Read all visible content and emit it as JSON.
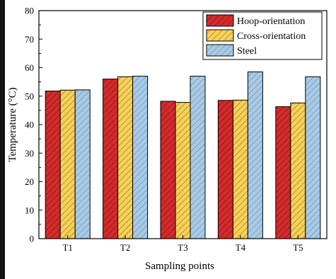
{
  "chart_data": {
    "type": "bar",
    "title": "",
    "xlabel": "Sampling points",
    "ylabel": "Temperature (°C)",
    "categories": [
      "T1",
      "T2",
      "T3",
      "T4",
      "T5"
    ],
    "ylim": [
      0,
      80
    ],
    "yticks": [
      "0",
      "10",
      "20",
      "30",
      "40",
      "50",
      "60",
      "70",
      "80"
    ],
    "grid": false,
    "legend_position": "top-right",
    "series": [
      {
        "name": "Hoop-orientation",
        "values": [
          51.8,
          56.0,
          48.2,
          48.5,
          46.3
        ],
        "color": "#d42b2b",
        "hatch": "#6b0d0d"
      },
      {
        "name": "Cross-orientation",
        "values": [
          52.1,
          56.8,
          47.8,
          48.6,
          47.6
        ],
        "color": "#f7d15a",
        "hatch": "#8a6a10"
      },
      {
        "name": "Steel",
        "values": [
          52.2,
          57.0,
          57.0,
          58.5,
          56.8
        ],
        "color": "#a9cbe6",
        "hatch": "#5b86ad"
      }
    ]
  }
}
